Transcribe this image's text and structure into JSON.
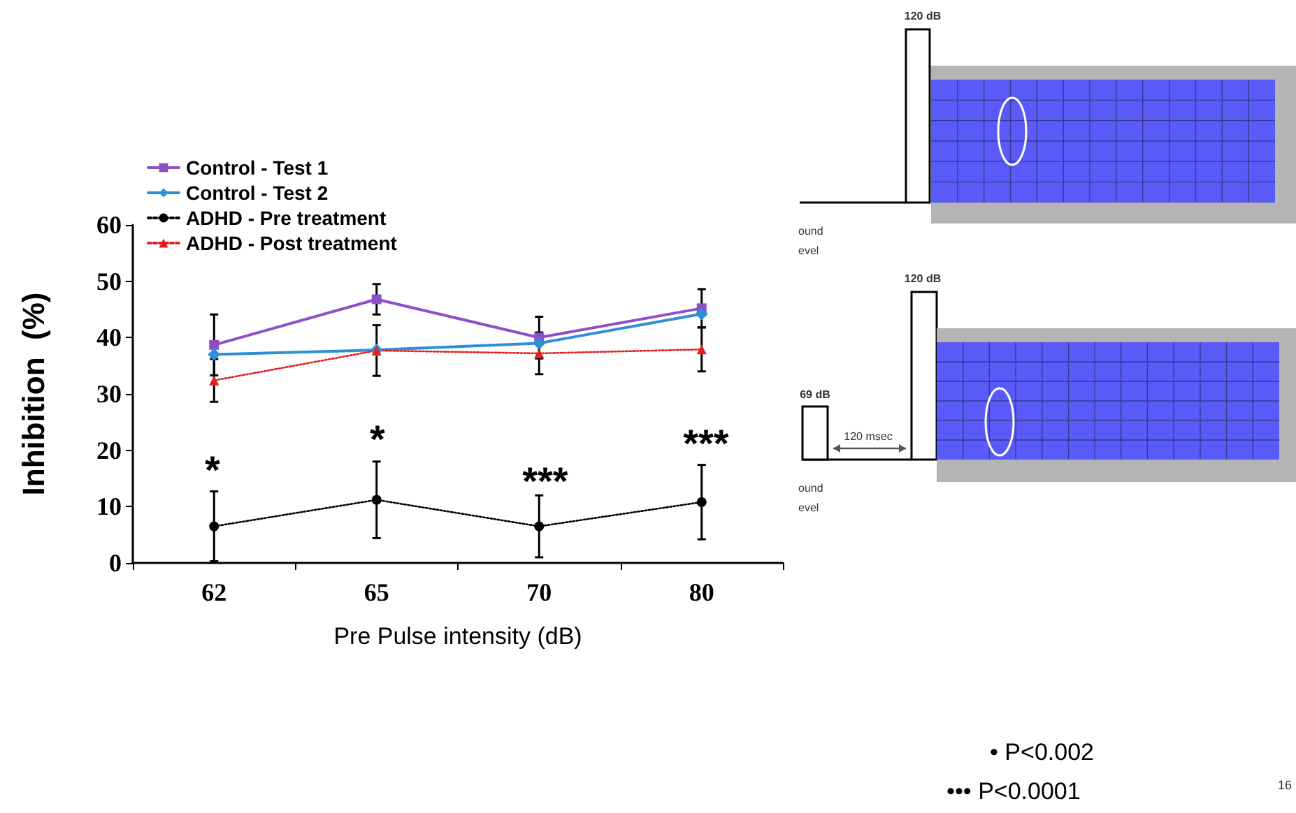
{
  "chart_data": {
    "type": "line",
    "ylabel": "Inhibition  (%)",
    "xlabel": "Pre Pulse intensity (dB)",
    "categories": [
      "62",
      "65",
      "70",
      "80"
    ],
    "ylim": [
      0,
      60
    ],
    "yticks": [
      0,
      10,
      20,
      30,
      40,
      50,
      60
    ],
    "grid": false,
    "legend": "top left",
    "series": [
      {
        "name": "Control - Test 1",
        "color": "#8e50c8",
        "marker": "square",
        "line_style": "solid",
        "values": [
          38.7,
          46.8,
          40.0,
          45.2
        ],
        "errors": [
          5.4,
          2.7,
          3.7,
          3.4
        ]
      },
      {
        "name": "Control - Test 2",
        "color": "#2f8fd6",
        "marker": "diamond",
        "line_style": "solid",
        "values": [
          37.0,
          37.8,
          39.0,
          44.2
        ]
      },
      {
        "name": "ADHD - Pre treatment",
        "color": "#000000",
        "marker": "circle",
        "line_style": "dotted",
        "values": [
          6.5,
          11.2,
          6.5,
          10.8
        ],
        "errors": [
          6.2,
          6.8,
          5.5,
          6.6
        ]
      },
      {
        "name": "ADHD - Post treatment",
        "color": "#e02020",
        "marker": "triangle",
        "line_style": "dotted",
        "values": [
          32.4,
          37.7,
          37.2,
          37.9
        ],
        "errors": [
          3.8,
          4.5,
          3.7,
          3.9
        ]
      }
    ],
    "annotations": [
      "*",
      "*",
      "***",
      "***",
      "120 dB",
      "ound",
      "evel",
      "120 dB",
      "69 dB",
      "120 msec",
      "ound",
      "evel",
      "• P<0.002",
      "••• P<0.0001",
      "16"
    ]
  }
}
